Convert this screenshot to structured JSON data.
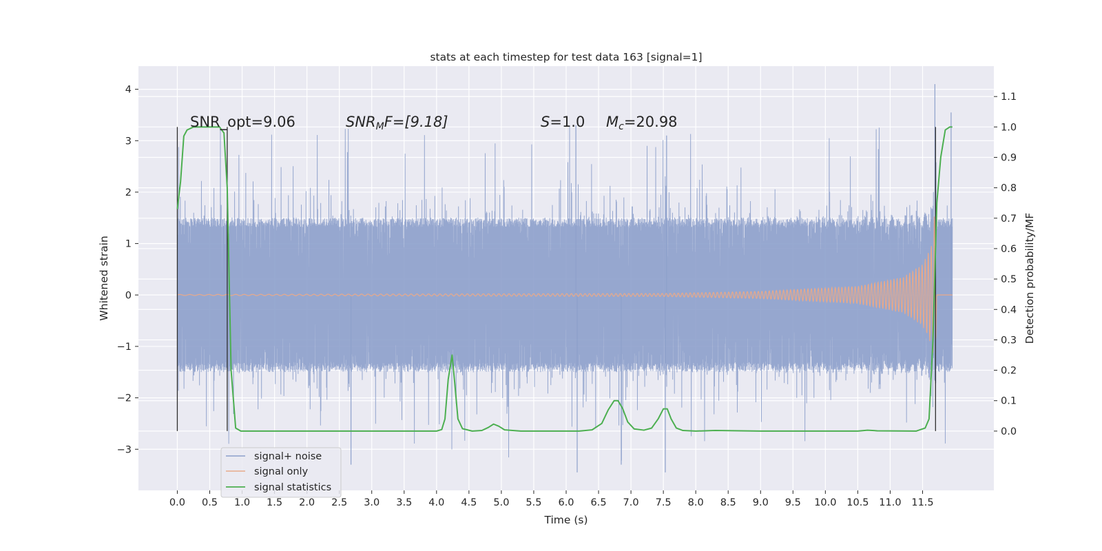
{
  "chart_data": {
    "type": "line",
    "title": "stats at each timestep for test data 163 [signal=1]",
    "xlabel": "Time (s)",
    "ylabel_left": "Whitened strain",
    "ylabel_right": "Detection probability/MF",
    "xlim": [
      -0.6,
      12.6
    ],
    "ylim_left": [
      -3.8,
      4.45
    ],
    "ylim_right": [
      -0.195,
      1.2
    ],
    "grid": true,
    "legend_placement": "lower-left",
    "x_ticks": [
      "0.0",
      "0.5",
      "1.0",
      "1.5",
      "2.0",
      "2.5",
      "3.0",
      "3.5",
      "4.0",
      "4.5",
      "5.0",
      "5.5",
      "6.0",
      "6.5",
      "7.0",
      "7.5",
      "8.0",
      "8.5",
      "9.0",
      "9.5",
      "10.0",
      "10.5",
      "11.0",
      "11.5"
    ],
    "y_ticks_left": [
      "4",
      "3",
      "2",
      "1",
      "0",
      "−1",
      "−2",
      "−3"
    ],
    "y_ticks_right": [
      "1.1",
      "1.0",
      "0.9",
      "0.8",
      "0.7",
      "0.6",
      "0.5",
      "0.4",
      "0.3",
      "0.2",
      "0.1",
      "0.0"
    ],
    "annotations": {
      "snr_opt": "SNR_opt=9.06",
      "snr_mf_name": "SNR",
      "snr_mf_sub": "M",
      "snr_mf_value": "F=[9.18]",
      "s_name": "S",
      "s_value": "=1.0",
      "mc_name": "M",
      "mc_sub": "c",
      "mc_value": "=20.98"
    },
    "series": [
      {
        "name": "signal+ noise",
        "color": "#8da0cb",
        "axis": "left",
        "x_range": [
          0.0,
          11.96
        ],
        "envelope_typical": [
          -1.5,
          1.5
        ],
        "envelope_peaks": [
          -3.45,
          4.1
        ]
      },
      {
        "name": "signal only",
        "color": "#e8a98a",
        "axis": "left",
        "x_range": [
          0.0,
          11.96
        ],
        "amplitude_points": [
          [
            0.0,
            0.01
          ],
          [
            7.5,
            0.03
          ],
          [
            9.0,
            0.07
          ],
          [
            10.5,
            0.17
          ],
          [
            11.2,
            0.35
          ],
          [
            11.5,
            0.6
          ],
          [
            11.65,
            1.0
          ],
          [
            11.69,
            1.7
          ],
          [
            11.72,
            0.0
          ]
        ]
      },
      {
        "name": "signal statistics",
        "color": "#4caf50",
        "axis": "right",
        "points": [
          [
            0.0,
            0.73
          ],
          [
            0.05,
            0.82
          ],
          [
            0.1,
            0.97
          ],
          [
            0.15,
            0.99
          ],
          [
            0.25,
            1.0
          ],
          [
            0.5,
            1.0
          ],
          [
            0.65,
            1.0
          ],
          [
            0.72,
            0.98
          ],
          [
            0.77,
            0.8
          ],
          [
            0.83,
            0.2
          ],
          [
            0.9,
            0.01
          ],
          [
            0.98,
            0.0
          ],
          [
            2.5,
            0.0
          ],
          [
            4.0,
            0.0
          ],
          [
            4.08,
            0.005
          ],
          [
            4.13,
            0.04
          ],
          [
            4.18,
            0.17
          ],
          [
            4.24,
            0.25
          ],
          [
            4.28,
            0.16
          ],
          [
            4.33,
            0.04
          ],
          [
            4.4,
            0.008
          ],
          [
            4.55,
            0.0
          ],
          [
            4.7,
            0.002
          ],
          [
            4.8,
            0.012
          ],
          [
            4.88,
            0.023
          ],
          [
            4.96,
            0.016
          ],
          [
            5.05,
            0.004
          ],
          [
            5.3,
            0.0
          ],
          [
            6.2,
            0.0
          ],
          [
            6.4,
            0.004
          ],
          [
            6.55,
            0.025
          ],
          [
            6.65,
            0.07
          ],
          [
            6.74,
            0.1
          ],
          [
            6.8,
            0.1
          ],
          [
            6.87,
            0.075
          ],
          [
            6.95,
            0.03
          ],
          [
            7.05,
            0.007
          ],
          [
            7.2,
            0.003
          ],
          [
            7.32,
            0.01
          ],
          [
            7.42,
            0.04
          ],
          [
            7.5,
            0.073
          ],
          [
            7.56,
            0.073
          ],
          [
            7.62,
            0.04
          ],
          [
            7.7,
            0.01
          ],
          [
            7.8,
            0.002
          ],
          [
            8.0,
            0.0
          ],
          [
            8.3,
            0.002
          ],
          [
            8.7,
            0.001
          ],
          [
            9.0,
            0.0
          ],
          [
            10.5,
            0.0
          ],
          [
            10.65,
            0.003
          ],
          [
            10.8,
            0.001
          ],
          [
            11.4,
            0.0
          ],
          [
            11.54,
            0.01
          ],
          [
            11.6,
            0.04
          ],
          [
            11.66,
            0.3
          ],
          [
            11.72,
            0.75
          ],
          [
            11.78,
            0.9
          ],
          [
            11.85,
            0.99
          ],
          [
            11.92,
            1.0
          ],
          [
            11.96,
            1.0
          ]
        ]
      }
    ],
    "vertical_markers": {
      "x": [
        0.0,
        0.77,
        11.7
      ],
      "color": "#2d2d2d",
      "y_range_right": [
        0.0,
        1.0
      ]
    }
  }
}
